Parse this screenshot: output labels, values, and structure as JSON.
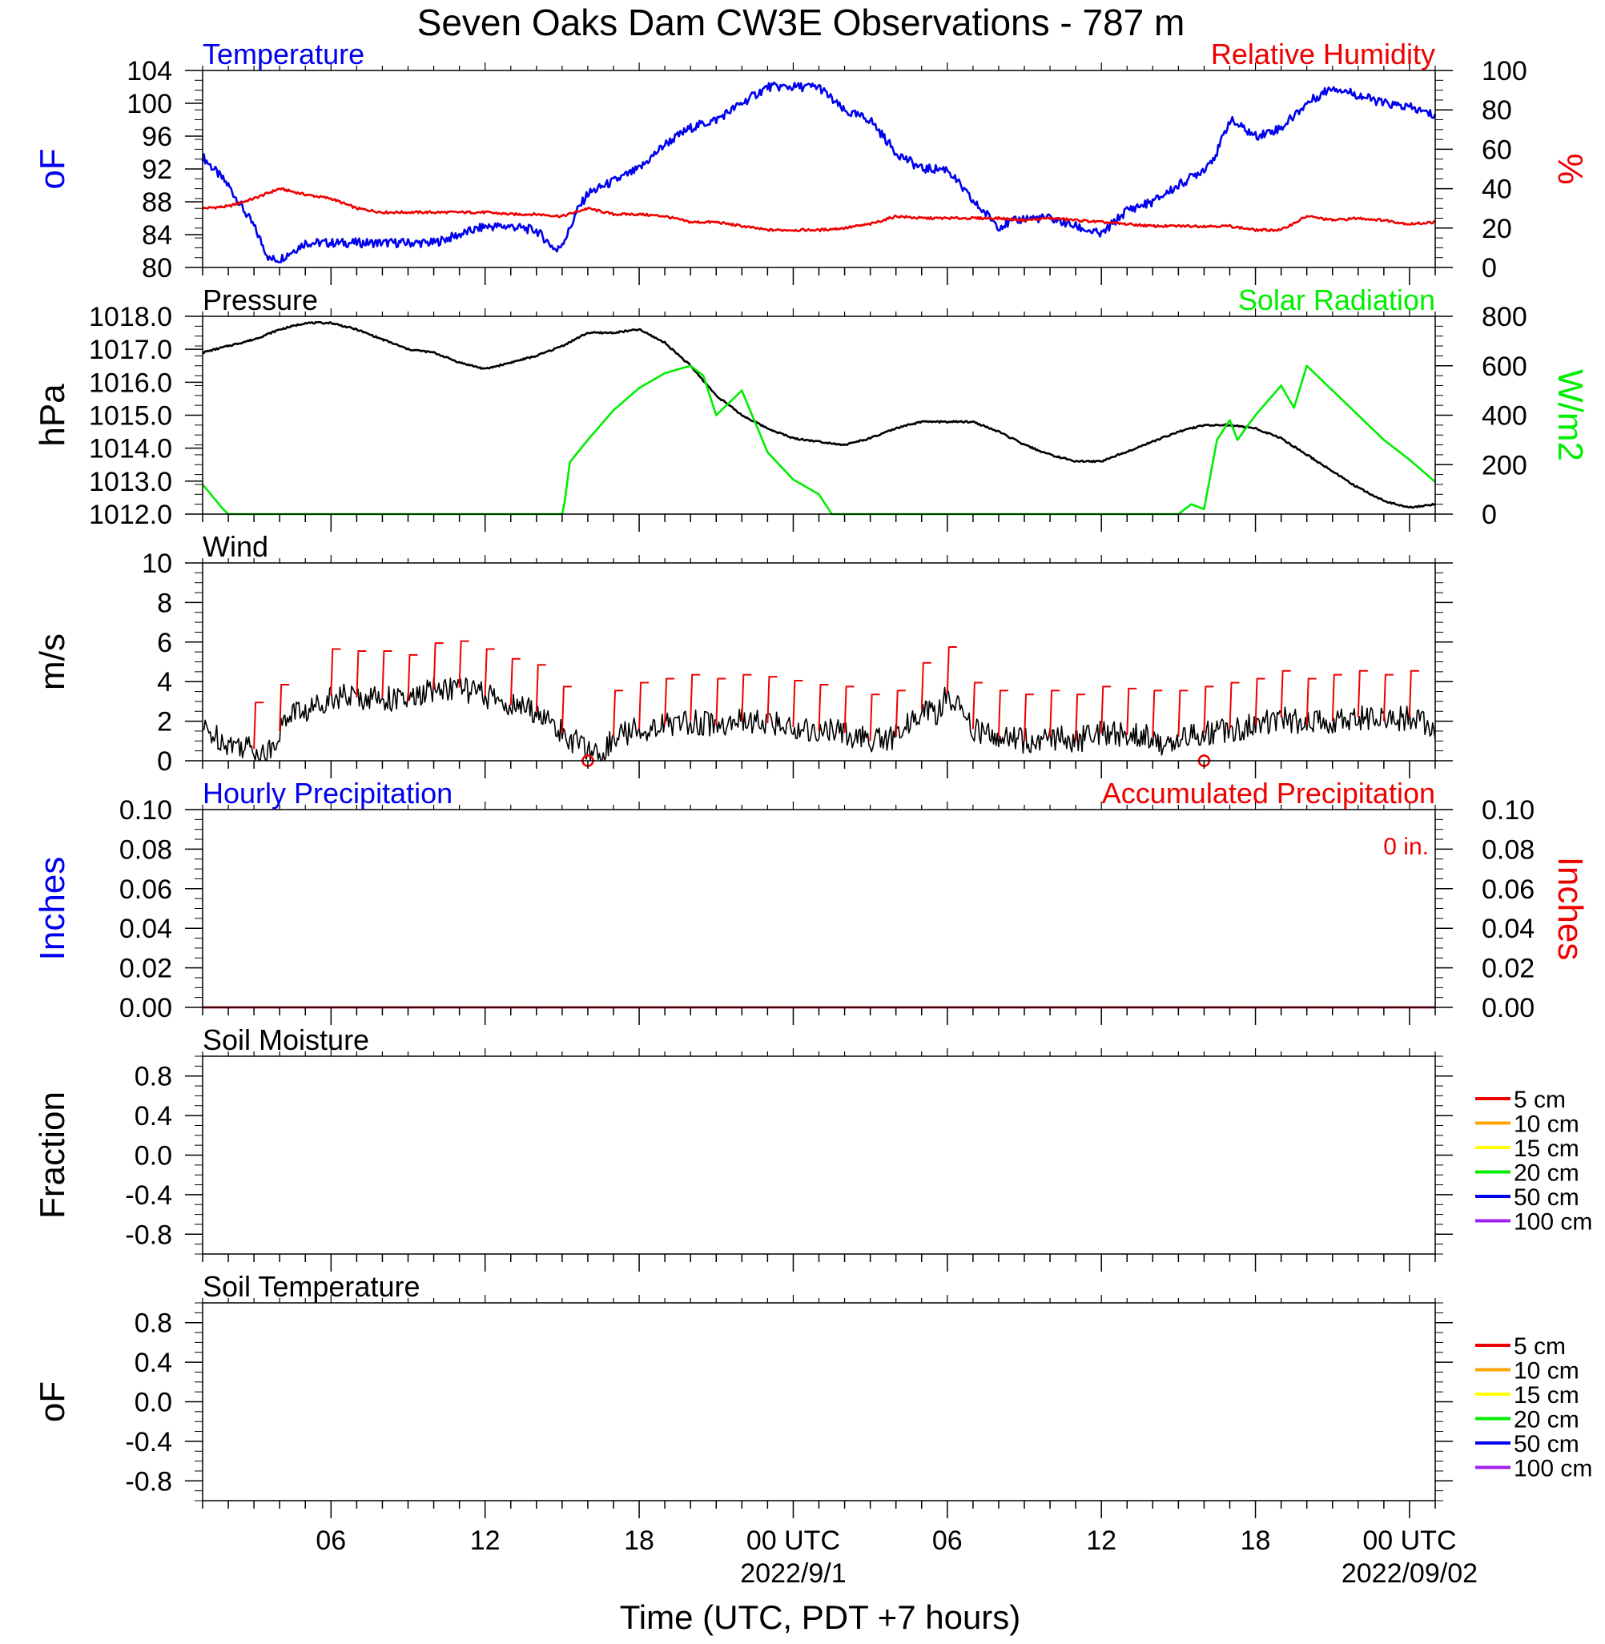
{
  "page": {
    "title": "Seven Oaks Dam CW3E Observations - 787 m",
    "xlabel": "Time (UTC, PDT +7 hours)"
  },
  "x_axis": {
    "unit": "hours since start of plot (UTC)",
    "range_hours": [
      1,
      49
    ],
    "ticks": [
      {
        "hour": 6,
        "label": "06",
        "sublabel": ""
      },
      {
        "hour": 12,
        "label": "12",
        "sublabel": ""
      },
      {
        "hour": 18,
        "label": "18",
        "sublabel": ""
      },
      {
        "hour": 24,
        "label": "00 UTC",
        "sublabel": "2022/9/1"
      },
      {
        "hour": 30,
        "label": "06",
        "sublabel": ""
      },
      {
        "hour": 36,
        "label": "12",
        "sublabel": ""
      },
      {
        "hour": 42,
        "label": "18",
        "sublabel": ""
      },
      {
        "hour": 48,
        "label": "00 UTC",
        "sublabel": "2022/09/02"
      }
    ]
  },
  "colors": {
    "blue": "#0000ee",
    "red": "#ee0000",
    "green": "#00ee00",
    "black": "#000000",
    "orange": "#ffa500",
    "yellow": "#ffff00",
    "purple": "#a020f0"
  },
  "chart_data": [
    {
      "type": "line",
      "panel": "temperature-humidity",
      "left_title": "Temperature",
      "right_title": "Relative Humidity",
      "left_ylabel": "oF",
      "right_ylabel": "%",
      "ylim_left": [
        80,
        104
      ],
      "ylim_right": [
        0,
        100
      ],
      "yticks_left": [
        "80",
        "84",
        "88",
        "92",
        "96",
        "100",
        "104"
      ],
      "yticks_right": [
        "0",
        "20",
        "40",
        "60",
        "80",
        "100"
      ],
      "series": [
        {
          "axis": "left",
          "color": "blue",
          "x": [
            1,
            2,
            3,
            3.6,
            4,
            5,
            6,
            8,
            10,
            11,
            12,
            13,
            14,
            14.8,
            15.2,
            15.6,
            16,
            17,
            18,
            19,
            20,
            21,
            22,
            23,
            24,
            25,
            26,
            27,
            28,
            29,
            30,
            31,
            31.7,
            32,
            33,
            34,
            35,
            36,
            37,
            38,
            39,
            40,
            40.5,
            41,
            42,
            43,
            44,
            45,
            46,
            47,
            48,
            49
          ],
          "y": [
            93.5,
            90,
            85,
            81,
            81,
            83,
            83,
            83,
            83,
            84,
            85,
            85,
            84.5,
            82,
            84,
            87,
            89,
            90.5,
            92,
            95,
            97,
            98,
            100,
            102,
            102,
            102,
            99,
            98,
            94,
            92,
            92,
            88,
            86,
            85,
            86,
            86,
            85,
            84,
            87,
            88,
            90,
            92,
            94,
            98,
            96,
            97,
            100,
            102,
            101,
            100,
            99.5,
            98.5
          ]
        },
        {
          "axis": "right",
          "color": "red",
          "x": [
            1,
            2,
            3,
            4,
            5,
            6,
            7,
            8,
            10,
            12,
            13,
            14,
            15,
            16,
            17,
            18,
            19,
            20,
            21,
            22,
            23,
            24,
            25,
            26,
            27,
            28,
            29,
            30,
            31,
            32,
            33,
            34,
            35,
            36,
            37,
            38,
            39,
            40,
            41,
            42,
            43,
            44,
            45,
            46,
            47,
            48,
            49
          ],
          "y": [
            30,
            31,
            35,
            40,
            37,
            35,
            30,
            28,
            28,
            28,
            27,
            27,
            26,
            30,
            27,
            27,
            26,
            23,
            23,
            21,
            19,
            19,
            19,
            20,
            22,
            26,
            25,
            25,
            25,
            25,
            24,
            25,
            24,
            23,
            22,
            21,
            21,
            21,
            21,
            19,
            19,
            26,
            24,
            25,
            24,
            22,
            23
          ]
        }
      ]
    },
    {
      "type": "line",
      "panel": "pressure-solar",
      "left_title": "Pressure",
      "right_title": "Solar Radiation",
      "left_ylabel": "hPa",
      "right_ylabel": "W/m2",
      "ylim_left": [
        1012,
        1018
      ],
      "ylim_right": [
        0,
        800
      ],
      "yticks_left": [
        "1012.0",
        "1013.0",
        "1014.0",
        "1015.0",
        "1016.0",
        "1017.0",
        "1018.0"
      ],
      "yticks_right": [
        "0",
        "200",
        "400",
        "600",
        "800"
      ],
      "series": [
        {
          "axis": "left",
          "color": "black",
          "x": [
            1,
            2,
            3,
            4,
            5,
            6,
            7,
            8,
            9,
            10,
            11,
            12,
            13,
            14,
            15,
            16,
            17,
            18,
            19,
            20,
            21,
            22,
            23,
            24,
            25,
            26,
            27,
            28,
            29,
            30,
            31,
            32,
            33,
            34,
            35,
            36,
            37,
            38,
            39,
            40,
            41,
            42,
            43,
            44,
            45,
            46,
            47,
            48,
            49
          ],
          "y": [
            1016.9,
            1017.1,
            1017.3,
            1017.6,
            1017.8,
            1017.8,
            1017.6,
            1017.3,
            1017.0,
            1016.9,
            1016.6,
            1016.4,
            1016.6,
            1016.8,
            1017.1,
            1017.5,
            1017.5,
            1017.6,
            1017.2,
            1016.5,
            1015.6,
            1015.0,
            1014.6,
            1014.3,
            1014.2,
            1014.1,
            1014.3,
            1014.6,
            1014.8,
            1014.8,
            1014.8,
            1014.5,
            1014.1,
            1013.8,
            1013.6,
            1013.6,
            1013.9,
            1014.2,
            1014.5,
            1014.7,
            1014.7,
            1014.6,
            1014.3,
            1013.8,
            1013.3,
            1012.8,
            1012.4,
            1012.2,
            1012.3
          ]
        },
        {
          "axis": "right",
          "color": "green",
          "x": [
            1,
            1.8,
            2,
            15,
            15.1,
            15.3,
            16,
            17,
            18,
            19,
            20,
            20.5,
            21,
            22,
            23,
            24,
            25,
            25.5,
            26,
            26.5,
            27,
            27.5,
            39,
            39.5,
            40,
            40.5,
            41,
            41.3,
            42,
            43,
            43.5,
            44,
            45,
            46,
            47,
            48,
            49
          ],
          "y": [
            120,
            20,
            0,
            0,
            50,
            210,
            300,
            420,
            510,
            570,
            600,
            560,
            400,
            500,
            250,
            140,
            80,
            0,
            0,
            0,
            0,
            0,
            0,
            40,
            20,
            300,
            380,
            300,
            400,
            520,
            430,
            600,
            500,
            400,
            300,
            220,
            130
          ]
        }
      ]
    },
    {
      "type": "line",
      "panel": "wind",
      "left_title": "Wind",
      "left_ylabel": "m/s",
      "ylim_left": [
        0,
        10
      ],
      "yticks_left": [
        "0",
        "2",
        "4",
        "6",
        "8",
        "10"
      ],
      "series": [
        {
          "axis": "left",
          "color": "black",
          "x": [
            1,
            2,
            2.5,
            3,
            3.5,
            4,
            4.5,
            5,
            6,
            7,
            8,
            9,
            10,
            11,
            12,
            13,
            14,
            15,
            16,
            16.5,
            17,
            18,
            19,
            20,
            21,
            22,
            23,
            24,
            25,
            26,
            27,
            28,
            29,
            29.5,
            30,
            31,
            32,
            33,
            34,
            35,
            36,
            37,
            38,
            38.5,
            39,
            40,
            41,
            42,
            43,
            44,
            45,
            46,
            47,
            48,
            49
          ],
          "y": [
            1.6,
            0.9,
            0.8,
            0.6,
            0.3,
            1.5,
            2.6,
            2.4,
            3.3,
            3.2,
            3.2,
            3.0,
            3.6,
            3.7,
            3.3,
            2.8,
            2.5,
            1.4,
            0.5,
            0.2,
            1.2,
            1.6,
            1.8,
            2.0,
            1.8,
            2.0,
            1.9,
            1.7,
            1.5,
            1.4,
            1.0,
            1.2,
            2.6,
            2.2,
            3.4,
            1.6,
            1.2,
            1.0,
            1.2,
            1.0,
            1.4,
            1.3,
            1.2,
            0.5,
            1.2,
            1.4,
            1.6,
            1.8,
            2.2,
            1.8,
            2.0,
            2.2,
            2.0,
            2.2,
            1.6
          ]
        }
      ],
      "barb_hours": [
        3,
        4,
        6,
        7,
        8,
        9,
        10,
        11,
        12,
        13,
        14,
        15,
        17,
        18,
        19,
        20,
        21,
        22,
        23,
        24,
        25,
        26,
        27,
        28,
        29,
        30,
        31,
        32,
        33,
        34,
        35,
        36,
        37,
        38,
        39,
        40,
        41,
        42,
        43,
        44,
        45,
        46,
        47,
        48
      ],
      "calm_hours": [
        16,
        40
      ],
      "barb_color": "red"
    },
    {
      "type": "line",
      "panel": "precipitation",
      "left_title": "Hourly Precipitation",
      "right_title": "Accumulated Precipitation",
      "annotation": "0 in.",
      "left_ylabel": "Inches",
      "right_ylabel": "Inches",
      "ylim_left": [
        0,
        0.1
      ],
      "ylim_right": [
        0,
        0.1
      ],
      "yticks_left": [
        "0.00",
        "0.02",
        "0.04",
        "0.06",
        "0.08",
        "0.10"
      ],
      "yticks_right": [
        "0.00",
        "0.02",
        "0.04",
        "0.06",
        "0.08",
        "0.10"
      ],
      "series": [
        {
          "axis": "left",
          "color": "blue",
          "x": [
            1,
            49
          ],
          "y": [
            0,
            0
          ]
        },
        {
          "axis": "right",
          "color": "red",
          "x": [
            1,
            49
          ],
          "y": [
            0,
            0
          ]
        }
      ]
    },
    {
      "type": "line",
      "panel": "soil-moisture",
      "left_title": "Soil Moisture",
      "left_ylabel": "Fraction",
      "ylim_left": [
        -1,
        1
      ],
      "yticks_left": [
        "-0.8",
        "-0.4",
        "0.0",
        "0.4",
        "0.8"
      ],
      "legend": [
        {
          "label": "5 cm",
          "color": "red"
        },
        {
          "label": "10 cm",
          "color": "orange"
        },
        {
          "label": "15 cm",
          "color": "yellow"
        },
        {
          "label": "20 cm",
          "color": "green"
        },
        {
          "label": "50 cm",
          "color": "blue"
        },
        {
          "label": "100 cm",
          "color": "purple"
        }
      ],
      "series": []
    },
    {
      "type": "line",
      "panel": "soil-temperature",
      "left_title": "Soil Temperature",
      "left_ylabel": "oF",
      "ylim_left": [
        -1,
        1
      ],
      "yticks_left": [
        "-0.8",
        "-0.4",
        "0.0",
        "0.4",
        "0.8"
      ],
      "legend": [
        {
          "label": "5 cm",
          "color": "red"
        },
        {
          "label": "10 cm",
          "color": "orange"
        },
        {
          "label": "15 cm",
          "color": "yellow"
        },
        {
          "label": "20 cm",
          "color": "green"
        },
        {
          "label": "50 cm",
          "color": "blue"
        },
        {
          "label": "100 cm",
          "color": "purple"
        }
      ],
      "series": []
    }
  ]
}
